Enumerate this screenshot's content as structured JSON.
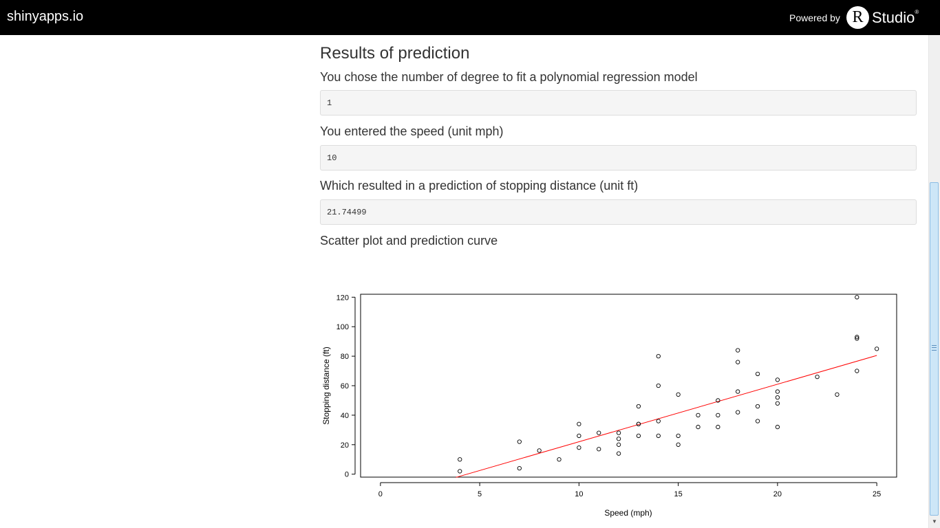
{
  "header": {
    "brand": "shinyapps.io",
    "powered_by": "Powered by",
    "logo_letter": "R",
    "logo_word": "Studio",
    "logo_mark": "®"
  },
  "main": {
    "heading": "Results of prediction",
    "degree_label": "You chose the number of degree to fit a polynomial regression model",
    "degree_value": "1",
    "speed_label": "You entered the speed (unit mph)",
    "speed_value": "10",
    "result_label": "Which resulted in a prediction of stopping distance (unit ft)",
    "result_value": "21.74499",
    "plot_label": "Scatter plot and prediction curve"
  },
  "chart_data": {
    "type": "scatter",
    "xlabel": "Speed (mph)",
    "ylabel": "Stopping distance (ft)",
    "xlim": [
      -1,
      26
    ],
    "ylim": [
      -2,
      122
    ],
    "xticks": [
      0,
      5,
      10,
      15,
      20,
      25
    ],
    "yticks": [
      0,
      20,
      40,
      60,
      80,
      100,
      120
    ],
    "points": [
      [
        4,
        2
      ],
      [
        4,
        10
      ],
      [
        7,
        4
      ],
      [
        7,
        22
      ],
      [
        8,
        16
      ],
      [
        9,
        10
      ],
      [
        10,
        18
      ],
      [
        10,
        26
      ],
      [
        10,
        34
      ],
      [
        11,
        17
      ],
      [
        11,
        28
      ],
      [
        12,
        14
      ],
      [
        12,
        20
      ],
      [
        12,
        24
      ],
      [
        12,
        28
      ],
      [
        13,
        26
      ],
      [
        13,
        34
      ],
      [
        13,
        34
      ],
      [
        13,
        46
      ],
      [
        14,
        26
      ],
      [
        14,
        36
      ],
      [
        14,
        60
      ],
      [
        14,
        80
      ],
      [
        15,
        20
      ],
      [
        15,
        26
      ],
      [
        15,
        54
      ],
      [
        16,
        32
      ],
      [
        16,
        40
      ],
      [
        17,
        32
      ],
      [
        17,
        40
      ],
      [
        17,
        50
      ],
      [
        18,
        42
      ],
      [
        18,
        56
      ],
      [
        18,
        76
      ],
      [
        18,
        84
      ],
      [
        19,
        36
      ],
      [
        19,
        46
      ],
      [
        19,
        68
      ],
      [
        20,
        32
      ],
      [
        20,
        48
      ],
      [
        20,
        52
      ],
      [
        20,
        56
      ],
      [
        20,
        64
      ],
      [
        22,
        66
      ],
      [
        23,
        54
      ],
      [
        24,
        70
      ],
      [
        24,
        92
      ],
      [
        24,
        93
      ],
      [
        24,
        120
      ],
      [
        25,
        85
      ]
    ],
    "fit_line": {
      "from": [
        3.8,
        -2.2
      ],
      "to": [
        25,
        80.5
      ],
      "color": "#ff0000"
    },
    "point_color": "#000000",
    "grid": false
  }
}
